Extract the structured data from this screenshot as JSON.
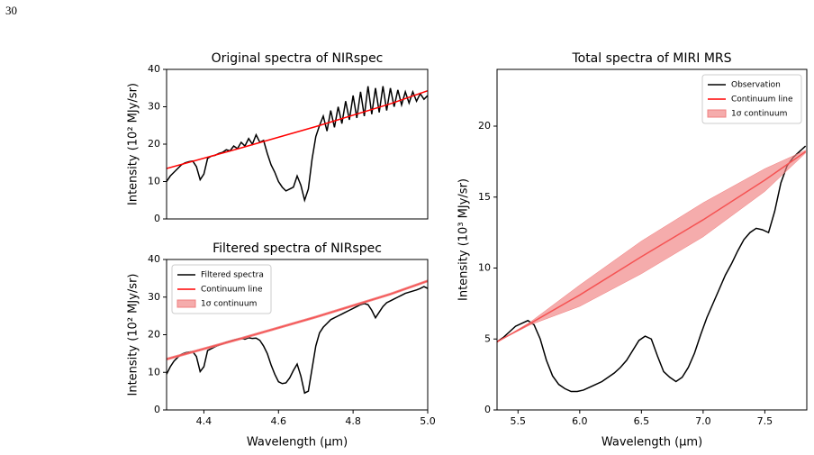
{
  "page_number": "30",
  "chart_data": [
    {
      "type": "line",
      "title": "Original spectra of NIRspec",
      "y_label": "Intensity (10² MJy/sr)",
      "xlim": [
        4.3,
        5.0
      ],
      "ylim": [
        0,
        40
      ],
      "yticks": [
        0,
        10,
        20,
        30,
        40
      ],
      "series": [
        {
          "color": "#000000",
          "x": [
            4.3,
            4.31,
            4.32,
            4.33,
            4.34,
            4.35,
            4.36,
            4.37,
            4.38,
            4.39,
            4.4,
            4.41,
            4.42,
            4.43,
            4.44,
            4.45,
            4.46,
            4.47,
            4.48,
            4.49,
            4.5,
            4.51,
            4.52,
            4.53,
            4.54,
            4.55,
            4.56,
            4.57,
            4.58,
            4.59,
            4.6,
            4.61,
            4.62,
            4.63,
            4.64,
            4.65,
            4.66,
            4.67,
            4.68,
            4.69,
            4.7,
            4.71,
            4.72,
            4.73,
            4.74,
            4.75,
            4.76,
            4.77,
            4.78,
            4.79,
            4.8,
            4.81,
            4.82,
            4.83,
            4.84,
            4.85,
            4.86,
            4.87,
            4.88,
            4.89,
            4.9,
            4.91,
            4.92,
            4.93,
            4.94,
            4.95,
            4.96,
            4.97,
            4.98,
            4.99,
            5.0
          ],
          "values": [
            10.0,
            11.5,
            12.5,
            13.5,
            14.5,
            15.0,
            15.3,
            15.5,
            14.0,
            10.5,
            12.0,
            16.2,
            16.8,
            17.0,
            17.5,
            17.8,
            18.5,
            18.2,
            19.5,
            18.8,
            20.5,
            19.5,
            21.5,
            20.0,
            22.5,
            20.5,
            21.0,
            17.5,
            14.5,
            12.5,
            10.0,
            8.5,
            7.5,
            8.0,
            8.5,
            11.5,
            9.0,
            5.0,
            8.0,
            16.0,
            22.0,
            25.0,
            27.5,
            23.5,
            29.0,
            24.5,
            30.0,
            25.5,
            31.5,
            26.5,
            33.0,
            27.0,
            34.0,
            27.5,
            35.5,
            28.0,
            35.0,
            28.5,
            35.5,
            29.0,
            35.0,
            30.0,
            34.5,
            30.5,
            34.0,
            31.0,
            34.0,
            31.5,
            33.5,
            32.0,
            33.0
          ]
        },
        {
          "color": "#ff0000",
          "x": [
            4.3,
            4.5,
            4.7,
            4.9,
            5.0
          ],
          "values": [
            13.5,
            19.0,
            24.7,
            30.8,
            34.3
          ]
        }
      ]
    },
    {
      "type": "line",
      "title": "Filtered spectra of NIRspec",
      "x_label": "Wavelength (μm)",
      "y_label": "Intensity (10² MJy/sr)",
      "xlim": [
        4.3,
        5.0
      ],
      "ylim": [
        0,
        40
      ],
      "xticks": [
        4.4,
        4.6,
        4.8,
        {
          "value": 5.0,
          "label": "5.0"
        }
      ],
      "yticks": [
        0,
        10,
        20,
        30,
        40
      ],
      "legend": "upper left",
      "series": [
        {
          "name": "Filtered spectra",
          "color": "#000000",
          "x": [
            4.3,
            4.31,
            4.32,
            4.33,
            4.34,
            4.35,
            4.36,
            4.37,
            4.38,
            4.39,
            4.4,
            4.41,
            4.42,
            4.43,
            4.44,
            4.45,
            4.46,
            4.47,
            4.48,
            4.49,
            4.5,
            4.51,
            4.52,
            4.53,
            4.54,
            4.55,
            4.56,
            4.57,
            4.58,
            4.59,
            4.6,
            4.61,
            4.62,
            4.63,
            4.64,
            4.65,
            4.66,
            4.67,
            4.68,
            4.69,
            4.7,
            4.71,
            4.72,
            4.73,
            4.74,
            4.75,
            4.76,
            4.77,
            4.78,
            4.79,
            4.8,
            4.81,
            4.82,
            4.83,
            4.84,
            4.85,
            4.86,
            4.87,
            4.88,
            4.89,
            4.9,
            4.91,
            4.92,
            4.93,
            4.94,
            4.95,
            4.96,
            4.97,
            4.98,
            4.99,
            5.0
          ],
          "values": [
            9.5,
            11.5,
            13.0,
            14.0,
            14.8,
            15.2,
            15.4,
            15.5,
            14.2,
            10.2,
            11.5,
            15.8,
            16.3,
            16.8,
            17.2,
            17.6,
            18.0,
            18.3,
            18.6,
            18.8,
            19.0,
            18.8,
            19.2,
            19.0,
            19.1,
            18.5,
            17.0,
            15.0,
            12.0,
            9.5,
            7.5,
            7.0,
            7.2,
            8.5,
            10.5,
            12.2,
            9.0,
            4.5,
            5.0,
            11.0,
            17.0,
            20.5,
            22.0,
            23.0,
            24.0,
            24.5,
            25.0,
            25.5,
            26.0,
            26.5,
            27.0,
            27.5,
            28.0,
            28.3,
            28.0,
            26.5,
            24.5,
            26.0,
            27.5,
            28.5,
            29.0,
            29.5,
            30.0,
            30.5,
            31.0,
            31.3,
            31.6,
            31.9,
            32.3,
            32.8,
            32.3
          ]
        },
        {
          "name": "Continuum line",
          "color": "#ff0000",
          "x": [
            4.3,
            4.5,
            4.7,
            4.9,
            5.0
          ],
          "values": [
            13.5,
            19.0,
            24.7,
            30.8,
            34.3
          ]
        },
        {
          "name": "1σ continuum",
          "color": "#f08080",
          "x": [
            4.3,
            4.5,
            4.7,
            4.9,
            5.0
          ],
          "lower": [
            13.2,
            18.7,
            24.4,
            30.5,
            34.0
          ],
          "upper": [
            13.8,
            19.3,
            25.0,
            31.1,
            34.6
          ]
        }
      ]
    },
    {
      "type": "line",
      "title": "Total spectra of MIRI MRS",
      "x_label": "Wavelength (μm)",
      "y_label": "Intensity (10³ MJy/sr)",
      "xlim": [
        5.33,
        7.84
      ],
      "ylim": [
        0,
        24
      ],
      "xticks": [
        5.5,
        {
          "value": 6.0,
          "label": "6.0"
        },
        6.5,
        {
          "value": 7.0,
          "label": "7.0"
        },
        7.5
      ],
      "yticks": [
        0,
        5,
        10,
        15,
        20
      ],
      "legend": "upper right",
      "series": [
        {
          "name": "Observation",
          "color": "#000000",
          "x": [
            5.33,
            5.38,
            5.43,
            5.48,
            5.53,
            5.58,
            5.63,
            5.68,
            5.73,
            5.78,
            5.83,
            5.88,
            5.93,
            5.98,
            6.03,
            6.08,
            6.13,
            6.18,
            6.23,
            6.28,
            6.33,
            6.38,
            6.43,
            6.48,
            6.53,
            6.58,
            6.63,
            6.68,
            6.73,
            6.78,
            6.83,
            6.88,
            6.93,
            6.98,
            7.03,
            7.08,
            7.13,
            7.18,
            7.23,
            7.28,
            7.33,
            7.38,
            7.43,
            7.48,
            7.53,
            7.58,
            7.63,
            7.68,
            7.73,
            7.78,
            7.83
          ],
          "values": [
            4.8,
            5.1,
            5.5,
            5.9,
            6.1,
            6.3,
            6.0,
            5.0,
            3.5,
            2.4,
            1.8,
            1.5,
            1.3,
            1.3,
            1.4,
            1.6,
            1.8,
            2.0,
            2.3,
            2.6,
            3.0,
            3.5,
            4.2,
            4.9,
            5.2,
            5.0,
            3.8,
            2.7,
            2.3,
            2.0,
            2.3,
            3.0,
            4.0,
            5.3,
            6.5,
            7.5,
            8.5,
            9.5,
            10.3,
            11.2,
            12.0,
            12.5,
            12.8,
            12.7,
            12.5,
            14.0,
            16.0,
            17.2,
            17.8,
            18.2,
            18.6
          ]
        },
        {
          "name": "Continuum line",
          "color": "#ff0000",
          "x": [
            5.33,
            5.6,
            6.0,
            6.5,
            7.0,
            7.5,
            7.83
          ],
          "values": [
            4.8,
            6.1,
            8.1,
            10.8,
            13.4,
            16.2,
            18.2
          ]
        },
        {
          "name": "1σ continuum",
          "color": "#f08080",
          "x": [
            5.33,
            5.6,
            6.0,
            6.5,
            7.0,
            7.5,
            7.83
          ],
          "lower": [
            4.8,
            6.0,
            7.3,
            9.6,
            12.2,
            15.4,
            18.1
          ],
          "upper": [
            4.8,
            6.2,
            8.8,
            11.9,
            14.6,
            17.0,
            18.3
          ]
        }
      ]
    }
  ]
}
